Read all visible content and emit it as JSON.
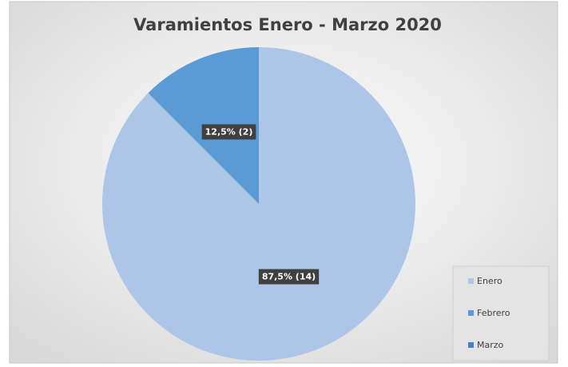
{
  "chart_data": {
    "type": "pie",
    "title": "Varamientos Enero - Marzo 2020",
    "categories": [
      "Enero",
      "Febrero",
      "Marzo"
    ],
    "values": [
      14,
      2,
      0
    ],
    "value_labels": [
      "87,5% (14)",
      "12,5% (2)",
      null
    ],
    "colors": [
      "#adc5e7",
      "#5b9bd5",
      "#4a80c0"
    ],
    "legend": "bottom-right"
  }
}
